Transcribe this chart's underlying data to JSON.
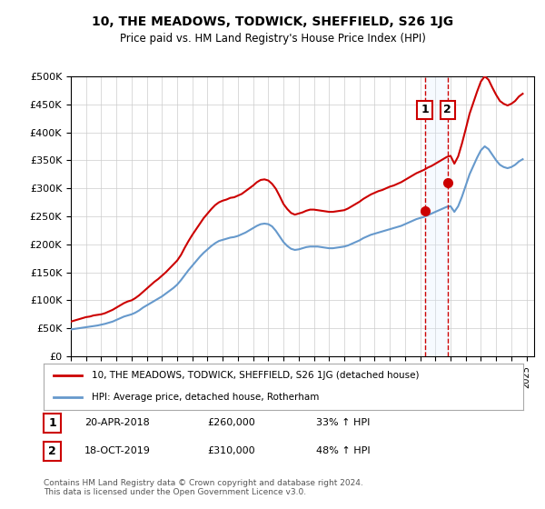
{
  "title": "10, THE MEADOWS, TODWICK, SHEFFIELD, S26 1JG",
  "subtitle": "Price paid vs. HM Land Registry's House Price Index (HPI)",
  "ylabel_ticks": [
    "£0",
    "£50K",
    "£100K",
    "£150K",
    "£200K",
    "£250K",
    "£300K",
    "£350K",
    "£400K",
    "£450K",
    "£500K"
  ],
  "ylim": [
    0,
    500000
  ],
  "xlim_start": 1995.0,
  "xlim_end": 2025.5,
  "legend_property": "10, THE MEADOWS, TODWICK, SHEFFIELD, S26 1JG (detached house)",
  "legend_hpi": "HPI: Average price, detached house, Rotherham",
  "sale1_x": 2018.3,
  "sale1_y": 260000,
  "sale1_label": "1",
  "sale1_date": "20-APR-2018",
  "sale1_price": "£260,000",
  "sale1_hpi": "33% ↑ HPI",
  "sale2_x": 2019.8,
  "sale2_y": 310000,
  "sale2_label": "2",
  "sale2_date": "18-OCT-2019",
  "sale2_price": "£310,000",
  "sale2_hpi": "48% ↑ HPI",
  "property_color": "#cc0000",
  "hpi_color": "#6699cc",
  "vline_color": "#cc0000",
  "shade_color": "#ddeeff",
  "footer": "Contains HM Land Registry data © Crown copyright and database right 2024.\nThis data is licensed under the Open Government Licence v3.0.",
  "hpi_data_x": [
    1995.0,
    1995.25,
    1995.5,
    1995.75,
    1996.0,
    1996.25,
    1996.5,
    1996.75,
    1997.0,
    1997.25,
    1997.5,
    1997.75,
    1998.0,
    1998.25,
    1998.5,
    1998.75,
    1999.0,
    1999.25,
    1999.5,
    1999.75,
    2000.0,
    2000.25,
    2000.5,
    2000.75,
    2001.0,
    2001.25,
    2001.5,
    2001.75,
    2002.0,
    2002.25,
    2002.5,
    2002.75,
    2003.0,
    2003.25,
    2003.5,
    2003.75,
    2004.0,
    2004.25,
    2004.5,
    2004.75,
    2005.0,
    2005.25,
    2005.5,
    2005.75,
    2006.0,
    2006.25,
    2006.5,
    2006.75,
    2007.0,
    2007.25,
    2007.5,
    2007.75,
    2008.0,
    2008.25,
    2008.5,
    2008.75,
    2009.0,
    2009.25,
    2009.5,
    2009.75,
    2010.0,
    2010.25,
    2010.5,
    2010.75,
    2011.0,
    2011.25,
    2011.5,
    2011.75,
    2012.0,
    2012.25,
    2012.5,
    2012.75,
    2013.0,
    2013.25,
    2013.5,
    2013.75,
    2014.0,
    2014.25,
    2014.5,
    2014.75,
    2015.0,
    2015.25,
    2015.5,
    2015.75,
    2016.0,
    2016.25,
    2016.5,
    2016.75,
    2017.0,
    2017.25,
    2017.5,
    2017.75,
    2018.0,
    2018.25,
    2018.5,
    2018.75,
    2019.0,
    2019.25,
    2019.5,
    2019.75,
    2020.0,
    2020.25,
    2020.5,
    2020.75,
    2021.0,
    2021.25,
    2021.5,
    2021.75,
    2022.0,
    2022.25,
    2022.5,
    2022.75,
    2023.0,
    2023.25,
    2023.5,
    2023.75,
    2024.0,
    2024.25,
    2024.5,
    2024.75
  ],
  "hpi_data_y": [
    48000,
    49000,
    50000,
    51000,
    52000,
    53000,
    54000,
    55000,
    56500,
    58000,
    60000,
    62000,
    65000,
    68000,
    71000,
    73000,
    75000,
    78000,
    82000,
    87000,
    91000,
    95000,
    99000,
    103000,
    107000,
    112000,
    117000,
    122000,
    128000,
    136000,
    145000,
    154000,
    162000,
    170000,
    178000,
    185000,
    191000,
    197000,
    202000,
    206000,
    208000,
    210000,
    212000,
    213000,
    215000,
    218000,
    221000,
    225000,
    229000,
    233000,
    236000,
    237000,
    236000,
    232000,
    224000,
    214000,
    204000,
    197000,
    192000,
    190000,
    191000,
    193000,
    195000,
    196000,
    196000,
    196000,
    195000,
    194000,
    193000,
    193000,
    194000,
    195000,
    196000,
    198000,
    201000,
    204000,
    207000,
    211000,
    214000,
    217000,
    219000,
    221000,
    223000,
    225000,
    227000,
    229000,
    231000,
    233000,
    236000,
    239000,
    242000,
    245000,
    247000,
    249000,
    252000,
    255000,
    258000,
    261000,
    264000,
    267000,
    268000,
    258000,
    268000,
    285000,
    305000,
    325000,
    340000,
    355000,
    368000,
    375000,
    370000,
    360000,
    350000,
    342000,
    338000,
    336000,
    338000,
    342000,
    348000,
    352000
  ],
  "prop_data_x": [
    1995.0,
    1995.25,
    1995.5,
    1995.75,
    1996.0,
    1996.25,
    1996.5,
    1996.75,
    1997.0,
    1997.25,
    1997.5,
    1997.75,
    1998.0,
    1998.25,
    1998.5,
    1998.75,
    1999.0,
    1999.25,
    1999.5,
    1999.75,
    2000.0,
    2000.25,
    2000.5,
    2000.75,
    2001.0,
    2001.25,
    2001.5,
    2001.75,
    2002.0,
    2002.25,
    2002.5,
    2002.75,
    2003.0,
    2003.25,
    2003.5,
    2003.75,
    2004.0,
    2004.25,
    2004.5,
    2004.75,
    2005.0,
    2005.25,
    2005.5,
    2005.75,
    2006.0,
    2006.25,
    2006.5,
    2006.75,
    2007.0,
    2007.25,
    2007.5,
    2007.75,
    2008.0,
    2008.25,
    2008.5,
    2008.75,
    2009.0,
    2009.25,
    2009.5,
    2009.75,
    2010.0,
    2010.25,
    2010.5,
    2010.75,
    2011.0,
    2011.25,
    2011.5,
    2011.75,
    2012.0,
    2012.25,
    2012.5,
    2012.75,
    2013.0,
    2013.25,
    2013.5,
    2013.75,
    2014.0,
    2014.25,
    2014.5,
    2014.75,
    2015.0,
    2015.25,
    2015.5,
    2015.75,
    2016.0,
    2016.25,
    2016.5,
    2016.75,
    2017.0,
    2017.25,
    2017.5,
    2017.75,
    2018.0,
    2018.25,
    2018.5,
    2018.75,
    2019.0,
    2019.25,
    2019.5,
    2019.75,
    2020.0,
    2020.25,
    2020.5,
    2020.75,
    2021.0,
    2021.25,
    2021.5,
    2021.75,
    2022.0,
    2022.25,
    2022.5,
    2022.75,
    2023.0,
    2023.25,
    2023.5,
    2023.75,
    2024.0,
    2024.25,
    2024.5,
    2024.75
  ],
  "prop_data_y": [
    62000,
    64000,
    66000,
    68000,
    70000,
    71000,
    73000,
    74000,
    75000,
    77000,
    80000,
    83000,
    87000,
    91000,
    95000,
    98000,
    100000,
    104000,
    109000,
    115000,
    121000,
    127000,
    133000,
    138000,
    144000,
    150000,
    157000,
    164000,
    171000,
    181000,
    194000,
    206000,
    217000,
    227000,
    237000,
    247000,
    255000,
    263000,
    270000,
    275000,
    278000,
    280000,
    283000,
    284000,
    287000,
    290000,
    295000,
    300000,
    305000,
    311000,
    315000,
    316000,
    314000,
    308000,
    299000,
    286000,
    272000,
    263000,
    256000,
    253000,
    255000,
    257000,
    260000,
    262000,
    262000,
    261000,
    260000,
    259000,
    258000,
    258000,
    259000,
    260000,
    261000,
    264000,
    268000,
    272000,
    276000,
    281000,
    285000,
    289000,
    292000,
    295000,
    297000,
    300000,
    303000,
    305000,
    308000,
    311000,
    315000,
    319000,
    323000,
    327000,
    330000,
    333000,
    337000,
    340000,
    344000,
    348000,
    352000,
    356000,
    358000,
    344000,
    357000,
    380000,
    406000,
    433000,
    453000,
    473000,
    491000,
    500000,
    494000,
    480000,
    467000,
    456000,
    451000,
    448000,
    451000,
    456000,
    464000,
    469000
  ]
}
